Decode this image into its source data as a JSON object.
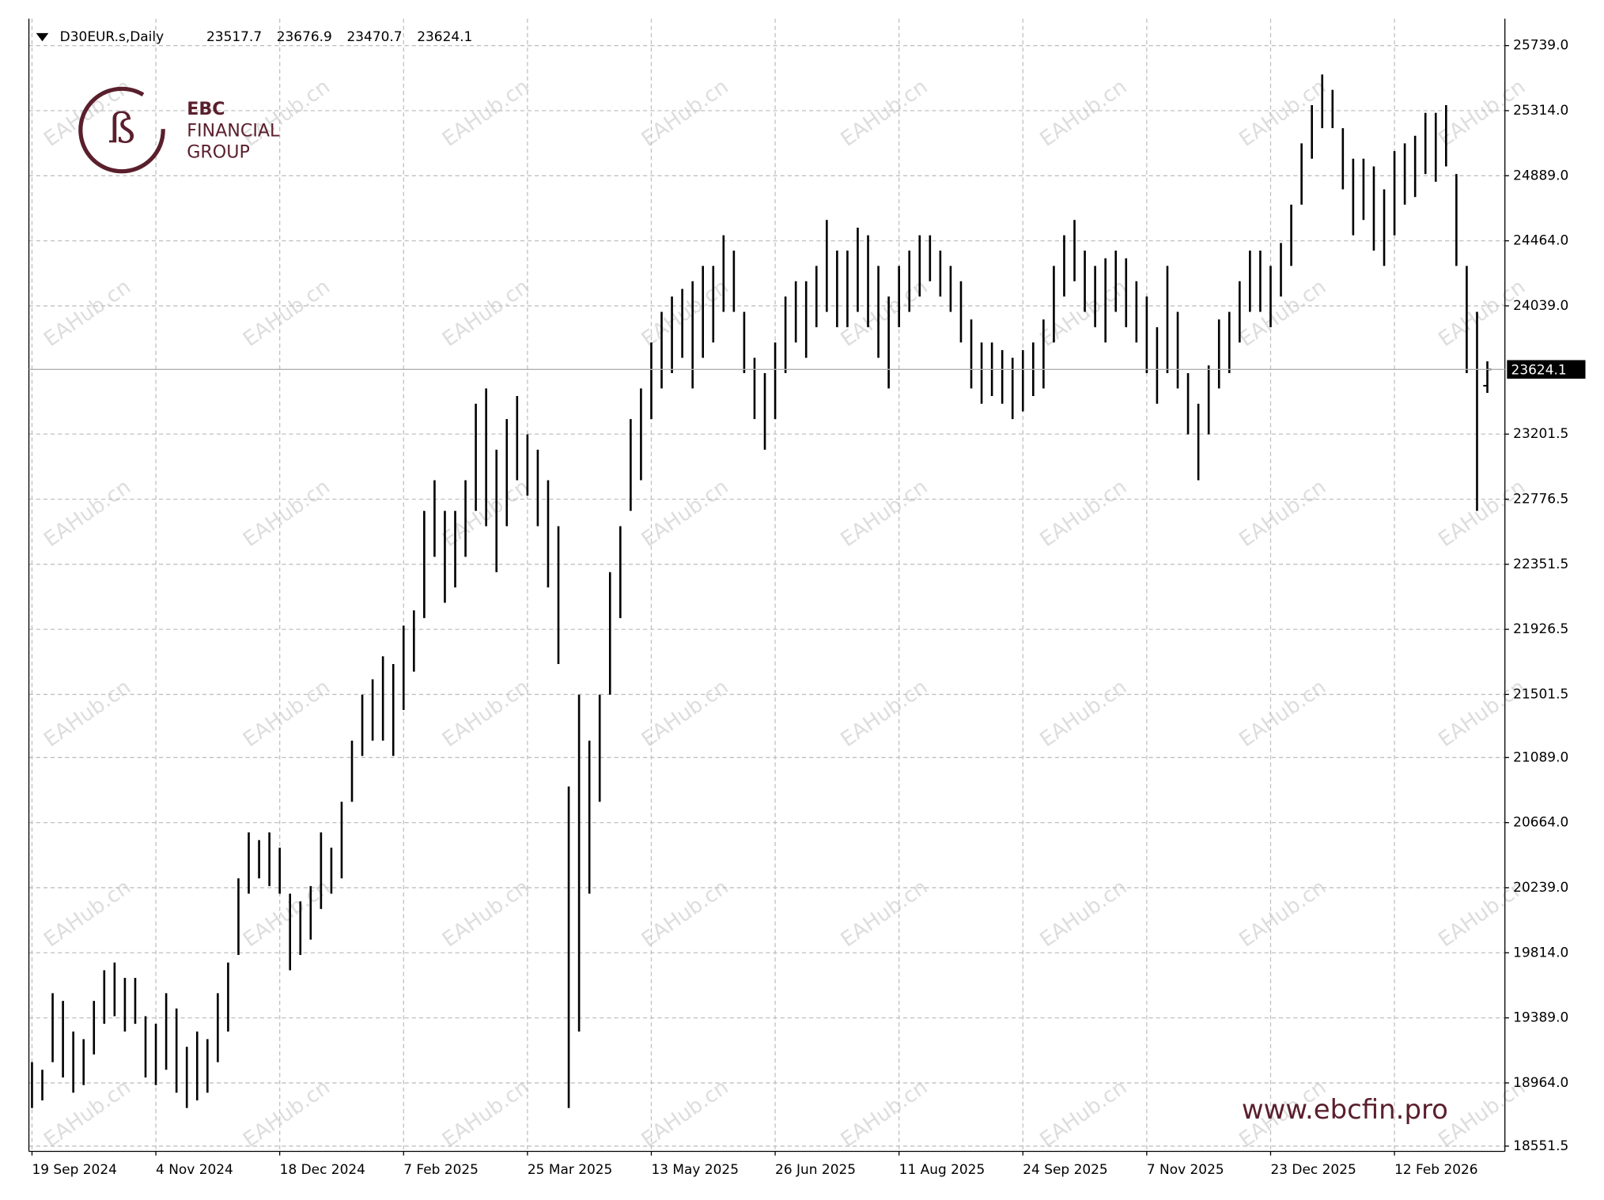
{
  "chart_data": {
    "type": "ohlc",
    "header": {
      "symbol": "D30EUR.s,Daily",
      "open": 23517.7,
      "high": 23676.9,
      "low": 23470.7,
      "close": 23624.1
    },
    "last_price": 23624.1,
    "brand": {
      "name": "EBC",
      "line2": "FINANCIAL",
      "line3": "GROUP",
      "url": "www.ebcfin.pro"
    },
    "watermark": "EAHub.cn",
    "color": "#000000",
    "grid": true,
    "ylim": [
      18517,
      25915
    ],
    "yticks": [
      {
        "value": 18551.5,
        "label": "18551.5"
      },
      {
        "value": 18964,
        "label": "18964.0"
      },
      {
        "value": 19389,
        "label": "19389.0"
      },
      {
        "value": 19814,
        "label": "19814.0"
      },
      {
        "value": 20239,
        "label": "20239.0"
      },
      {
        "value": 20664,
        "label": "20664.0"
      },
      {
        "value": 21089,
        "label": "21089.0"
      },
      21501.5,
      21926.5,
      22351.5,
      22776.5,
      23201.5,
      {
        "value": 24039,
        "label": "24039.0"
      },
      {
        "value": 24464,
        "label": "24464.0"
      },
      {
        "value": 24889,
        "label": "24889.0"
      },
      {
        "value": 25314,
        "label": "25314.0"
      },
      {
        "value": 25739,
        "label": "25739.0"
      }
    ],
    "categories": [
      "19 Sep 2024",
      null,
      null,
      null,
      null,
      null,
      null,
      null,
      null,
      null,
      null,
      null,
      "4 Nov 2024",
      null,
      null,
      null,
      null,
      null,
      null,
      null,
      null,
      null,
      null,
      null,
      "18 Dec 2024",
      null,
      null,
      null,
      null,
      null,
      null,
      null,
      null,
      null,
      null,
      null,
      "7 Feb 2025",
      null,
      null,
      null,
      null,
      null,
      null,
      null,
      null,
      null,
      null,
      null,
      "25 Mar 2025",
      null,
      null,
      null,
      null,
      null,
      null,
      null,
      null,
      null,
      null,
      null,
      "13 May 2025",
      null,
      null,
      null,
      null,
      null,
      null,
      null,
      null,
      null,
      null,
      null,
      "26 Jun 2025",
      null,
      null,
      null,
      null,
      null,
      null,
      null,
      null,
      null,
      null,
      null,
      "11 Aug 2025",
      null,
      null,
      null,
      null,
      null,
      null,
      null,
      null,
      null,
      null,
      null,
      "24 Sep 2025",
      null,
      null,
      null,
      null,
      null,
      null,
      null,
      null,
      null,
      null,
      null,
      "7 Nov 2025",
      null,
      null,
      null,
      null,
      null,
      null,
      null,
      null,
      null,
      null,
      null,
      "23 Dec 2025",
      null,
      null,
      null,
      null,
      null,
      null,
      null,
      null,
      null,
      null,
      null,
      "12 Feb 2026",
      null,
      null,
      null,
      null,
      null,
      null,
      null,
      null,
      null
    ],
    "series": [
      {
        "name": "high",
        "values": [
          19100,
          19050,
          19550,
          19500,
          19300,
          19250,
          19500,
          19700,
          19750,
          19650,
          19650,
          19400,
          19350,
          19550,
          19450,
          19200,
          19300,
          19250,
          19550,
          19750,
          20300,
          20600,
          20550,
          20600,
          20500,
          20200,
          20150,
          20250,
          20600,
          20500,
          20800,
          21200,
          21500,
          21600,
          21750,
          21700,
          21950,
          22050,
          22700,
          22900,
          22700,
          22700,
          22900,
          23400,
          23500,
          23100,
          23300,
          23450,
          23200,
          23100,
          22900,
          22600,
          20900,
          21500,
          21200,
          21500,
          22300,
          22600,
          23300,
          23500,
          23800,
          24000,
          24100,
          24150,
          24200,
          24300,
          24300,
          24500,
          24400,
          24000,
          23700,
          23600,
          23800,
          24100,
          24200,
          24200,
          24300,
          24600,
          24400,
          24400,
          24550,
          24500,
          24300,
          24100,
          24300,
          24400,
          24500,
          24500,
          24400,
          24300,
          24200,
          23950,
          23800,
          23800,
          23750,
          23700,
          23750,
          23800,
          23950,
          24300,
          24500,
          24600,
          24400,
          24300,
          24350,
          24400,
          24350,
          24200,
          24100,
          23900,
          24300,
          24000,
          23600,
          23400,
          23650,
          23950,
          24000,
          24200,
          24400,
          24400,
          24300,
          24450,
          24700,
          25100,
          25350,
          25550,
          25450,
          25200,
          25000,
          25000,
          24950,
          24800,
          25050,
          25100,
          25150,
          25300,
          25300,
          25350,
          24900,
          24300,
          24000,
          23676.9
        ]
      },
      {
        "name": "low",
        "values": [
          18800,
          18850,
          19100,
          19000,
          18900,
          18950,
          19150,
          19350,
          19400,
          19300,
          19350,
          19000,
          18950,
          19050,
          18900,
          18800,
          18850,
          18900,
          19100,
          19300,
          19800,
          20200,
          20300,
          20250,
          20200,
          19700,
          19800,
          19900,
          20100,
          20200,
          20300,
          20800,
          21100,
          21200,
          21200,
          21100,
          21400,
          21650,
          22000,
          22400,
          22100,
          22200,
          22400,
          22700,
          22600,
          22300,
          22600,
          22900,
          22800,
          22600,
          22200,
          21700,
          18800,
          19300,
          20200,
          20800,
          21500,
          22000,
          22700,
          22900,
          23300,
          23500,
          23600,
          23700,
          23500,
          23700,
          23800,
          24000,
          24000,
          23600,
          23300,
          23100,
          23300,
          23600,
          23800,
          23700,
          23900,
          24000,
          23900,
          23900,
          24000,
          23900,
          23700,
          23500,
          23900,
          24000,
          24100,
          24200,
          24100,
          24000,
          23800,
          23500,
          23400,
          23450,
          23400,
          23300,
          23350,
          23450,
          23500,
          23800,
          24100,
          24200,
          24000,
          23900,
          23800,
          24000,
          23900,
          23800,
          23600,
          23400,
          23600,
          23500,
          23200,
          22900,
          23200,
          23500,
          23600,
          23800,
          24000,
          24000,
          23900,
          24100,
          24300,
          24700,
          25000,
          25200,
          25200,
          24800,
          24500,
          24600,
          24400,
          24300,
          24500,
          24700,
          24750,
          24900,
          24850,
          24950,
          24300,
          23600,
          22700,
          23470.7
        ]
      }
    ]
  }
}
